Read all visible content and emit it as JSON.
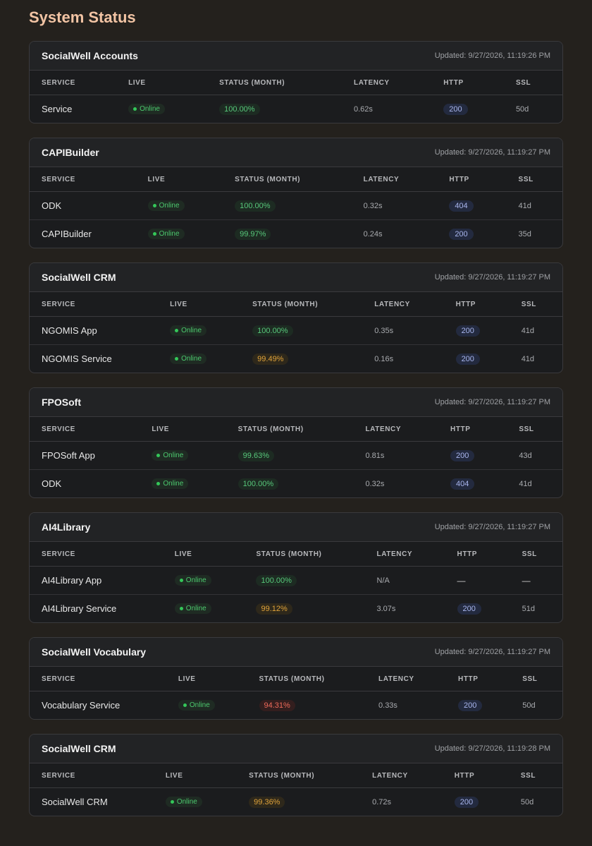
{
  "title": "System Status",
  "columns": {
    "service": "SERVICE",
    "live": "LIVE",
    "status": "STATUS (MONTH)",
    "latency": "LATENCY",
    "http": "HTTP",
    "ssl": "SSL"
  },
  "status_colors": {
    "good": "#57c77a",
    "warn": "#e0a33a",
    "bad": "#ef6a5a"
  },
  "groups": [
    {
      "name": "SocialWell Accounts",
      "updated": "Updated: 9/27/2026, 11:19:26 PM",
      "rows": [
        {
          "service": "Service",
          "live": "Online",
          "status": "100.00%",
          "status_level": "good",
          "latency": "0.62s",
          "http": "200",
          "ssl": "50d"
        }
      ]
    },
    {
      "name": "CAPIBuilder",
      "updated": "Updated: 9/27/2026, 11:19:27 PM",
      "rows": [
        {
          "service": "ODK",
          "live": "Online",
          "status": "100.00%",
          "status_level": "good",
          "latency": "0.32s",
          "http": "404",
          "ssl": "41d"
        },
        {
          "service": "CAPIBuilder",
          "live": "Online",
          "status": "99.97%",
          "status_level": "good",
          "latency": "0.24s",
          "http": "200",
          "ssl": "35d"
        }
      ]
    },
    {
      "name": "SocialWell CRM",
      "updated": "Updated: 9/27/2026, 11:19:27 PM",
      "rows": [
        {
          "service": "NGOMIS App",
          "live": "Online",
          "status": "100.00%",
          "status_level": "good",
          "latency": "0.35s",
          "http": "200",
          "ssl": "41d"
        },
        {
          "service": "NGOMIS Service",
          "live": "Online",
          "status": "99.49%",
          "status_level": "warn",
          "latency": "0.16s",
          "http": "200",
          "ssl": "41d"
        }
      ]
    },
    {
      "name": "FPOSoft",
      "updated": "Updated: 9/27/2026, 11:19:27 PM",
      "rows": [
        {
          "service": "FPOSoft App",
          "live": "Online",
          "status": "99.63%",
          "status_level": "good",
          "latency": "0.81s",
          "http": "200",
          "ssl": "43d"
        },
        {
          "service": "ODK",
          "live": "Online",
          "status": "100.00%",
          "status_level": "good",
          "latency": "0.32s",
          "http": "404",
          "ssl": "41d"
        }
      ]
    },
    {
      "name": "AI4Library",
      "updated": "Updated: 9/27/2026, 11:19:27 PM",
      "rows": [
        {
          "service": "AI4Library App",
          "live": "Online",
          "status": "100.00%",
          "status_level": "good",
          "latency": "N/A",
          "http": "—",
          "ssl": "—"
        },
        {
          "service": "AI4Library Service",
          "live": "Online",
          "status": "99.12%",
          "status_level": "warn",
          "latency": "3.07s",
          "http": "200",
          "ssl": "51d"
        }
      ]
    },
    {
      "name": "SocialWell Vocabulary",
      "updated": "Updated: 9/27/2026, 11:19:27 PM",
      "rows": [
        {
          "service": "Vocabulary Service",
          "live": "Online",
          "status": "94.31%",
          "status_level": "bad",
          "latency": "0.33s",
          "http": "200",
          "ssl": "50d"
        }
      ]
    },
    {
      "name": "SocialWell CRM",
      "updated": "Updated: 9/27/2026, 11:19:28 PM",
      "rows": [
        {
          "service": "SocialWell CRM",
          "live": "Online",
          "status": "99.36%",
          "status_level": "warn",
          "latency": "0.72s",
          "http": "200",
          "ssl": "50d"
        }
      ]
    }
  ]
}
